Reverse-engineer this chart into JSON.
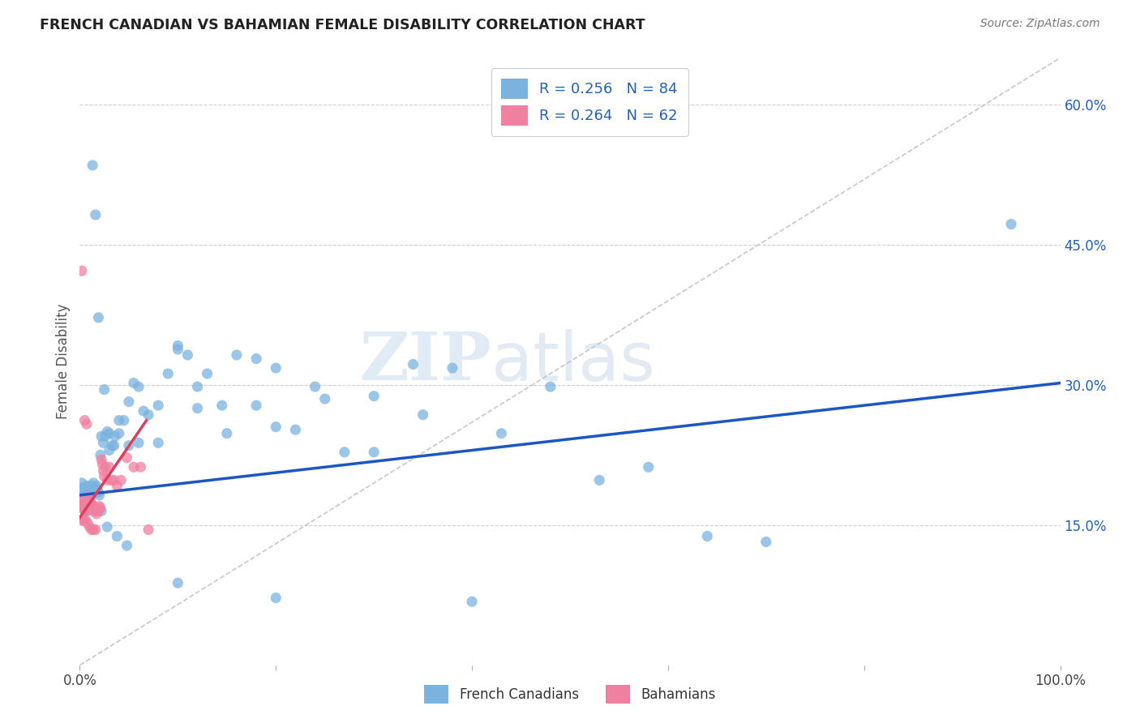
{
  "title": "FRENCH CANADIAN VS BAHAMIAN FEMALE DISABILITY CORRELATION CHART",
  "source": "Source: ZipAtlas.com",
  "ylabel": "Female Disability",
  "watermark": "ZIPatlas",
  "xlim": [
    0,
    1.0
  ],
  "ylim": [
    0.0,
    0.65
  ],
  "xtick_positions": [
    0.0,
    0.2,
    0.4,
    0.6,
    0.8,
    1.0
  ],
  "xtick_labels": [
    "0.0%",
    "",
    "",
    "",
    "",
    "100.0%"
  ],
  "ytick_values": [
    0.15,
    0.3,
    0.45,
    0.6
  ],
  "ytick_labels": [
    "15.0%",
    "30.0%",
    "45.0%",
    "60.0%"
  ],
  "blue_color": "#7ab3e0",
  "pink_color": "#f080a0",
  "trend_blue_color": "#1a56c4",
  "trend_pink_color": "#d94060",
  "diag_color": "#c0b8b8",
  "label_color": "#2060c0",
  "grid_color": "#d0d0d0",
  "background": "#ffffff",
  "trend_blue_x0": 0.0,
  "trend_blue_y0": 0.182,
  "trend_blue_x1": 1.0,
  "trend_blue_y1": 0.302,
  "trend_pink_x0": 0.0,
  "trend_pink_y0": 0.158,
  "trend_pink_x1": 0.068,
  "trend_pink_y1": 0.262,
  "fc_x": [
    0.002,
    0.003,
    0.004,
    0.005,
    0.006,
    0.007,
    0.008,
    0.009,
    0.01,
    0.011,
    0.012,
    0.013,
    0.014,
    0.015,
    0.016,
    0.017,
    0.018,
    0.019,
    0.02,
    0.022,
    0.024,
    0.026,
    0.028,
    0.03,
    0.033,
    0.036,
    0.04,
    0.045,
    0.05,
    0.055,
    0.06,
    0.065,
    0.07,
    0.08,
    0.09,
    0.1,
    0.11,
    0.12,
    0.13,
    0.145,
    0.16,
    0.18,
    0.2,
    0.22,
    0.24,
    0.27,
    0.3,
    0.34,
    0.38,
    0.43,
    0.48,
    0.53,
    0.58,
    0.64,
    0.7,
    0.95,
    0.025,
    0.03,
    0.035,
    0.04,
    0.05,
    0.06,
    0.08,
    0.1,
    0.12,
    0.15,
    0.18,
    0.2,
    0.25,
    0.3,
    0.35,
    0.013,
    0.016,
    0.019,
    0.021,
    0.01,
    0.007,
    0.014,
    0.022,
    0.028,
    0.038,
    0.048,
    0.1,
    0.2,
    0.4
  ],
  "fc_y": [
    0.195,
    0.19,
    0.185,
    0.188,
    0.182,
    0.192,
    0.185,
    0.188,
    0.18,
    0.192,
    0.182,
    0.185,
    0.195,
    0.188,
    0.19,
    0.192,
    0.188,
    0.185,
    0.182,
    0.245,
    0.238,
    0.245,
    0.25,
    0.248,
    0.235,
    0.245,
    0.262,
    0.262,
    0.282,
    0.302,
    0.298,
    0.272,
    0.268,
    0.278,
    0.312,
    0.342,
    0.332,
    0.298,
    0.312,
    0.278,
    0.332,
    0.278,
    0.318,
    0.252,
    0.298,
    0.228,
    0.288,
    0.322,
    0.318,
    0.248,
    0.298,
    0.198,
    0.212,
    0.138,
    0.132,
    0.472,
    0.295,
    0.23,
    0.235,
    0.248,
    0.235,
    0.238,
    0.238,
    0.338,
    0.275,
    0.248,
    0.328,
    0.255,
    0.285,
    0.228,
    0.268,
    0.535,
    0.482,
    0.372,
    0.225,
    0.172,
    0.17,
    0.168,
    0.165,
    0.148,
    0.138,
    0.128,
    0.088,
    0.072,
    0.068
  ],
  "bah_x": [
    0.001,
    0.002,
    0.002,
    0.003,
    0.003,
    0.004,
    0.004,
    0.005,
    0.005,
    0.006,
    0.006,
    0.007,
    0.007,
    0.008,
    0.008,
    0.009,
    0.009,
    0.01,
    0.01,
    0.011,
    0.011,
    0.012,
    0.012,
    0.013,
    0.013,
    0.014,
    0.015,
    0.015,
    0.016,
    0.016,
    0.017,
    0.018,
    0.019,
    0.02,
    0.021,
    0.022,
    0.023,
    0.024,
    0.025,
    0.026,
    0.028,
    0.03,
    0.032,
    0.035,
    0.038,
    0.042,
    0.048,
    0.055,
    0.062,
    0.07,
    0.003,
    0.004,
    0.006,
    0.008,
    0.01,
    0.012,
    0.014,
    0.016,
    0.002,
    0.003,
    0.005,
    0.007
  ],
  "bah_y": [
    0.178,
    0.175,
    0.172,
    0.175,
    0.17,
    0.168,
    0.172,
    0.165,
    0.168,
    0.165,
    0.168,
    0.165,
    0.168,
    0.17,
    0.172,
    0.18,
    0.175,
    0.175,
    0.172,
    0.175,
    0.172,
    0.17,
    0.172,
    0.17,
    0.168,
    0.165,
    0.17,
    0.168,
    0.165,
    0.168,
    0.162,
    0.165,
    0.165,
    0.17,
    0.168,
    0.22,
    0.215,
    0.208,
    0.202,
    0.212,
    0.198,
    0.212,
    0.198,
    0.198,
    0.192,
    0.198,
    0.222,
    0.212,
    0.212,
    0.145,
    0.155,
    0.155,
    0.155,
    0.152,
    0.148,
    0.145,
    0.145,
    0.145,
    0.422,
    0.175,
    0.262,
    0.258
  ]
}
